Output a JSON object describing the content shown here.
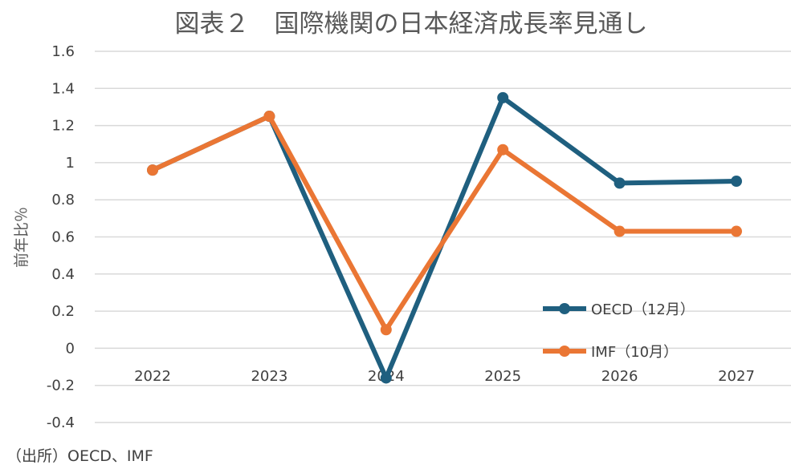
{
  "chart_data": {
    "type": "line",
    "title": "図表２　国際機関の日本経済成長率見通し",
    "ylabel": "前年比％",
    "xlabel": "",
    "categories": [
      "2022",
      "2023",
      "2024",
      "2025",
      "2026",
      "2027"
    ],
    "ylim": [
      -0.4,
      1.6
    ],
    "yticks": [
      1.6,
      1.4,
      1.2,
      1,
      0.8,
      0.6,
      0.4,
      0.2,
      0,
      -0.2,
      -0.4
    ],
    "grid": true,
    "legend_position": "right",
    "series": [
      {
        "name": "OECD（12月）",
        "color": "#1f5f7f",
        "values": [
          0.96,
          1.25,
          -0.16,
          1.35,
          0.89,
          0.9
        ]
      },
      {
        "name": "IMF（10月）",
        "color": "#ea7634",
        "values": [
          0.96,
          1.25,
          0.1,
          1.07,
          0.63,
          0.63
        ]
      }
    ]
  },
  "source": "（出所）OECD、IMF"
}
